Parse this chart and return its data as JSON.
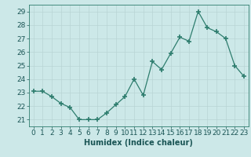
{
  "x": [
    0,
    1,
    2,
    3,
    4,
    5,
    6,
    7,
    8,
    9,
    10,
    11,
    12,
    13,
    14,
    15,
    16,
    17,
    18,
    19,
    20,
    21,
    22,
    23
  ],
  "y": [
    23.1,
    23.1,
    22.7,
    22.2,
    21.9,
    21.0,
    21.0,
    21.0,
    21.5,
    22.1,
    22.7,
    24.0,
    22.8,
    25.3,
    24.7,
    25.9,
    27.1,
    26.8,
    29.0,
    27.8,
    27.5,
    27.0,
    25.0,
    24.2
  ],
  "title": "",
  "xlabel": "Humidex (Indice chaleur)",
  "ylabel": "",
  "ylim": [
    20.5,
    29.5
  ],
  "xlim": [
    -0.5,
    23.5
  ],
  "yticks": [
    21,
    22,
    23,
    24,
    25,
    26,
    27,
    28,
    29
  ],
  "xtick_labels": [
    "0",
    "1",
    "2",
    "3",
    "4",
    "5",
    "6",
    "7",
    "8",
    "9",
    "10",
    "11",
    "12",
    "13",
    "14",
    "15",
    "16",
    "17",
    "18",
    "19",
    "20",
    "21",
    "22",
    "23"
  ],
  "line_color": "#2e7d6e",
  "marker": "+",
  "marker_size": 4,
  "bg_color": "#cce8e8",
  "grid_color": "#b8d4d4",
  "label_fontsize": 7,
  "tick_fontsize": 6.5
}
